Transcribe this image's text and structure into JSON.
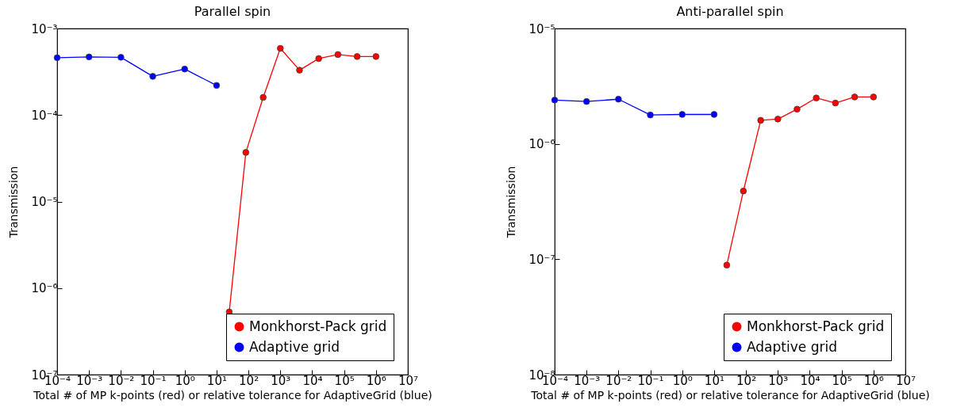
{
  "chart_data": [
    {
      "type": "line",
      "title": "Parallel spin",
      "xlabel": "Total # of MP k-points (red) or relative tolerance for AdaptiveGrid (blue)",
      "ylabel": "Transmission",
      "log": "xy",
      "grid": false,
      "legend": "bottom right",
      "marker": "circle",
      "line_style": "solid",
      "xlim": [
        0.0001,
        10000000
      ],
      "ylim": [
        1e-07,
        0.001
      ],
      "xticks": [
        {
          "value": 0.0001,
          "label": "10⁻⁴"
        },
        {
          "value": 0.001,
          "label": "10⁻³"
        },
        {
          "value": 0.01,
          "label": "10⁻²"
        },
        {
          "value": 0.1,
          "label": "10⁻¹"
        },
        {
          "value": 1,
          "label": "10⁰"
        },
        {
          "value": 10,
          "label": "10¹"
        },
        {
          "value": 100,
          "label": "10²"
        },
        {
          "value": 1000,
          "label": "10³"
        },
        {
          "value": 10000,
          "label": "10⁴"
        },
        {
          "value": 100000,
          "label": "10⁵"
        },
        {
          "value": 1000000,
          "label": "10⁶"
        },
        {
          "value": 10000000,
          "label": "10⁷"
        }
      ],
      "yticks": [
        {
          "value": 1e-07,
          "label": "10⁻⁷"
        },
        {
          "value": 1e-06,
          "label": "10⁻⁶"
        },
        {
          "value": 1e-05,
          "label": "10⁻⁵"
        },
        {
          "value": 0.0001,
          "label": "10⁻⁴"
        },
        {
          "value": 0.001,
          "label": "10⁻³"
        }
      ],
      "series": [
        {
          "name": "Monkhorst-Pack grid",
          "color": "#ff0000",
          "x": [
            25,
            83,
            290,
            1000,
            4000,
            16000,
            64000,
            256000,
            1000000
          ],
          "values": [
            5.3e-07,
            3.7e-05,
            0.00016,
            0.00059,
            0.00033,
            0.00045,
            0.0005,
            0.000475,
            0.000475
          ]
        },
        {
          "name": "Adaptive grid",
          "color": "#0000ff",
          "x": [
            0.0001,
            0.001,
            0.01,
            0.1,
            1,
            10
          ],
          "values": [
            0.00046,
            0.00047,
            0.000465,
            0.00028,
            0.00034,
            0.00022
          ]
        }
      ]
    },
    {
      "type": "line",
      "title": "Anti-parallel spin",
      "xlabel": "Total # of MP k-points (red) or relative tolerance for AdaptiveGrid (blue)",
      "ylabel": "Transmission",
      "log": "xy",
      "grid": false,
      "legend": "bottom right",
      "marker": "circle",
      "line_style": "solid",
      "xlim": [
        0.0001,
        10000000
      ],
      "ylim": [
        1e-08,
        1e-05
      ],
      "xticks": [
        {
          "value": 0.0001,
          "label": "10⁻⁴"
        },
        {
          "value": 0.001,
          "label": "10⁻³"
        },
        {
          "value": 0.01,
          "label": "10⁻²"
        },
        {
          "value": 0.1,
          "label": "10⁻¹"
        },
        {
          "value": 1,
          "label": "10⁰"
        },
        {
          "value": 10,
          "label": "10¹"
        },
        {
          "value": 100,
          "label": "10²"
        },
        {
          "value": 1000,
          "label": "10³"
        },
        {
          "value": 10000,
          "label": "10⁴"
        },
        {
          "value": 100000,
          "label": "10⁵"
        },
        {
          "value": 1000000,
          "label": "10⁶"
        },
        {
          "value": 10000000,
          "label": "10⁷"
        }
      ],
      "yticks": [
        {
          "value": 1e-08,
          "label": "10⁻⁸"
        },
        {
          "value": 1e-07,
          "label": "10⁻⁷"
        },
        {
          "value": 1e-06,
          "label": "10⁻⁶"
        },
        {
          "value": 1e-05,
          "label": "10⁻⁵"
        }
      ],
      "series": [
        {
          "name": "Monkhorst-Pack grid",
          "color": "#ff0000",
          "x": [
            25,
            83,
            290,
            1000,
            4000,
            16000,
            64000,
            256000,
            1000000
          ],
          "values": [
            8.9e-08,
            3.9e-07,
            1.6e-06,
            1.64e-06,
            2e-06,
            2.5e-06,
            2.26e-06,
            2.55e-06,
            2.55e-06
          ]
        },
        {
          "name": "Adaptive grid",
          "color": "#0000ff",
          "x": [
            0.0001,
            0.001,
            0.01,
            0.1,
            1,
            10
          ],
          "values": [
            2.4e-06,
            2.33e-06,
            2.44e-06,
            1.78e-06,
            1.8e-06,
            1.8e-06
          ]
        }
      ]
    }
  ]
}
